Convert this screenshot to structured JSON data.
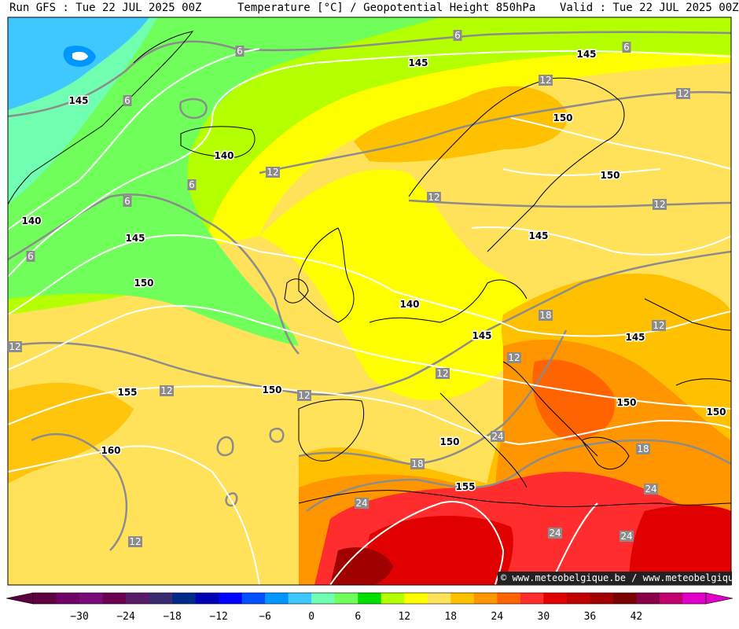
{
  "header": {
    "run": "Run GFS : Tue 22 JUL 2025 00Z",
    "title": "Temperature [°C] / Geopotential Height 850hPa",
    "valid": "Valid : Tue 22 JUL 2025 00Z"
  },
  "credit": "© www.meteobelgique.be / www.meteobelgique.be",
  "colorbar": {
    "colors": [
      "#5c0040",
      "#6e0068",
      "#7a0a78",
      "#6a0050",
      "#5a1a6a",
      "#3a2a72",
      "#002a8a",
      "#0000b4",
      "#0000ff",
      "#0050ff",
      "#0096ff",
      "#3ec8ff",
      "#70ffb0",
      "#70ff5a",
      "#00e000",
      "#b4ff00",
      "#ffff00",
      "#ffe25a",
      "#ffc000",
      "#ff9600",
      "#ff6400",
      "#ff2d2d",
      "#e00000",
      "#c00000",
      "#a00000",
      "#7a0000",
      "#8a0048",
      "#c0006e",
      "#e000c8"
    ],
    "ticks": [
      "−30",
      "−24",
      "−18",
      "−12",
      "−6",
      "0",
      "6",
      "12",
      "18",
      "24",
      "30",
      "36",
      "42"
    ]
  },
  "labels": {
    "height": [
      {
        "text": "145"
      },
      {
        "text": "145"
      },
      {
        "text": "145"
      },
      {
        "text": "150"
      },
      {
        "text": "140"
      },
      {
        "text": "150"
      },
      {
        "text": "140"
      },
      {
        "text": "145"
      },
      {
        "text": "145"
      },
      {
        "text": "150"
      },
      {
        "text": "140"
      },
      {
        "text": "145"
      },
      {
        "text": "145"
      },
      {
        "text": "155"
      },
      {
        "text": "150"
      },
      {
        "text": "160"
      },
      {
        "text": "150"
      },
      {
        "text": "155"
      },
      {
        "text": "150"
      },
      {
        "text": "150"
      }
    ],
    "temperature": [
      {
        "text": "6"
      },
      {
        "text": "6"
      },
      {
        "text": "6"
      },
      {
        "text": "6"
      },
      {
        "text": "6"
      },
      {
        "text": "6"
      },
      {
        "text": "6"
      },
      {
        "text": "12"
      },
      {
        "text": "12"
      },
      {
        "text": "12"
      },
      {
        "text": "12"
      },
      {
        "text": "12"
      },
      {
        "text": "12"
      },
      {
        "text": "12"
      },
      {
        "text": "12"
      },
      {
        "text": "12"
      },
      {
        "text": "12"
      },
      {
        "text": "12"
      },
      {
        "text": "18"
      },
      {
        "text": "18"
      },
      {
        "text": "18"
      },
      {
        "text": "24"
      },
      {
        "text": "24"
      },
      {
        "text": "24"
      },
      {
        "text": "24"
      },
      {
        "text": "24"
      },
      {
        "text": "12"
      }
    ]
  }
}
